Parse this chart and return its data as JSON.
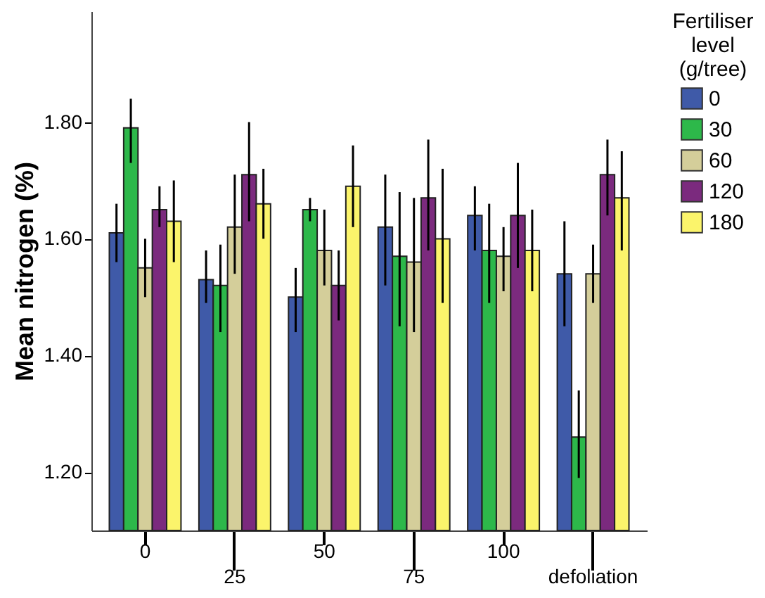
{
  "chart_data": {
    "type": "bar",
    "ylabel": "Mean nitrogen (%)",
    "legend_title": "Fertiliser level (g/tree)",
    "categories": [
      "0",
      "25",
      "50",
      "75",
      "100",
      "defoliation"
    ],
    "ylim": [
      1.1,
      1.99
    ],
    "yticks": [
      {
        "value": 1.2,
        "label": "1.20"
      },
      {
        "value": 1.4,
        "label": "1.40"
      },
      {
        "value": 1.6,
        "label": "1.60"
      },
      {
        "value": 1.8,
        "label": "1.80"
      }
    ],
    "grid": false,
    "legend": "right",
    "series": [
      {
        "name": "0",
        "color": "#3f5aa8",
        "values": [
          1.61,
          1.53,
          1.5,
          1.62,
          1.64,
          1.54
        ],
        "errors": [
          [
            1.56,
            1.66
          ],
          [
            1.49,
            1.58
          ],
          [
            1.44,
            1.55
          ],
          [
            1.52,
            1.71
          ],
          [
            1.58,
            1.69
          ],
          [
            1.45,
            1.63
          ]
        ]
      },
      {
        "name": "30",
        "color": "#2db84a",
        "values": [
          1.79,
          1.52,
          1.65,
          1.57,
          1.58,
          1.26
        ],
        "errors": [
          [
            1.73,
            1.84
          ],
          [
            1.44,
            1.59
          ],
          [
            1.63,
            1.67
          ],
          [
            1.45,
            1.68
          ],
          [
            1.49,
            1.66
          ],
          [
            1.19,
            1.34
          ]
        ]
      },
      {
        "name": "60",
        "color": "#d4ce9a",
        "values": [
          1.55,
          1.62,
          1.58,
          1.56,
          1.57,
          1.54
        ],
        "errors": [
          [
            1.5,
            1.6
          ],
          [
            1.54,
            1.71
          ],
          [
            1.52,
            1.65
          ],
          [
            1.44,
            1.67
          ],
          [
            1.51,
            1.62
          ],
          [
            1.49,
            1.59
          ]
        ]
      },
      {
        "name": "120",
        "color": "#7b2a7e",
        "values": [
          1.65,
          1.71,
          1.52,
          1.67,
          1.64,
          1.71
        ],
        "errors": [
          [
            1.62,
            1.69
          ],
          [
            1.63,
            1.8
          ],
          [
            1.46,
            1.58
          ],
          [
            1.58,
            1.77
          ],
          [
            1.55,
            1.73
          ],
          [
            1.64,
            1.77
          ]
        ]
      },
      {
        "name": "180",
        "color": "#fbf46b",
        "values": [
          1.63,
          1.66,
          1.69,
          1.6,
          1.58,
          1.67
        ],
        "errors": [
          [
            1.56,
            1.7
          ],
          [
            1.6,
            1.72
          ],
          [
            1.62,
            1.76
          ],
          [
            1.49,
            1.72
          ],
          [
            1.51,
            1.65
          ],
          [
            1.58,
            1.75
          ]
        ]
      }
    ]
  }
}
